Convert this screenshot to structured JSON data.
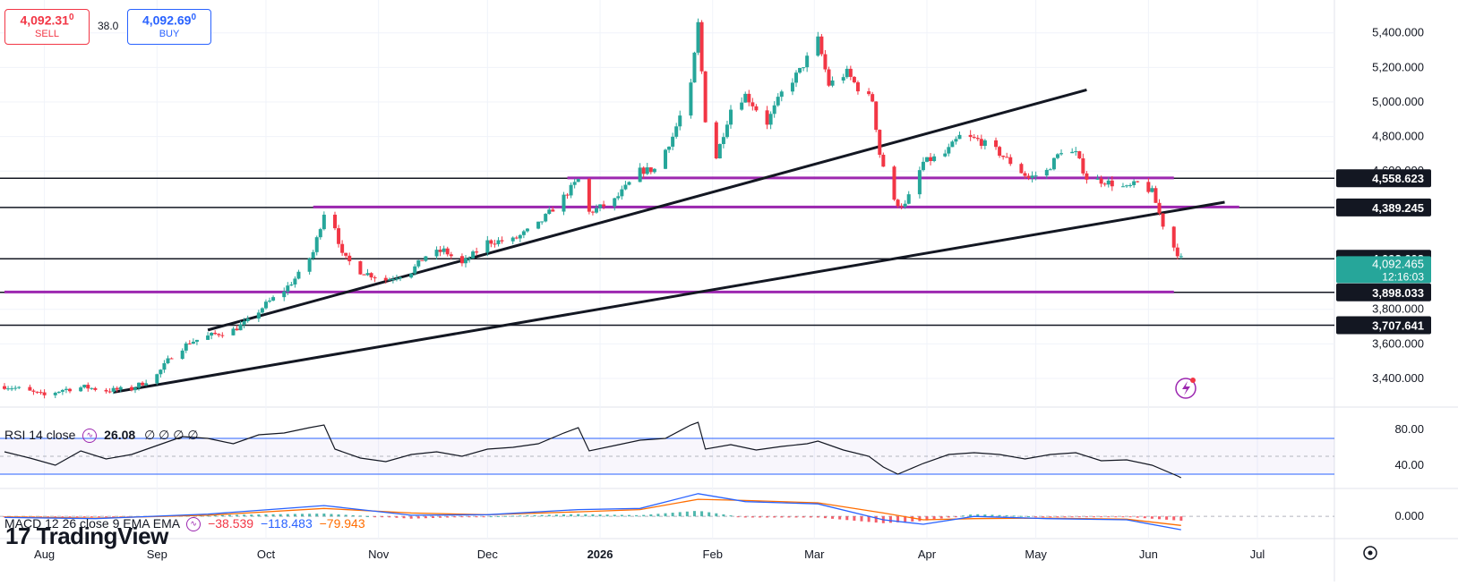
{
  "trade_panel": {
    "sell_price": "4,092.31",
    "sell_price_small": "0",
    "sell_label": "SELL",
    "spread": "38.0",
    "buy_price": "4,092.69",
    "buy_price_small": "0",
    "buy_label": "BUY"
  },
  "rsi_label": {
    "text": "RSI 14 close",
    "value": "26.08",
    "extra": "∅ ∅ ∅ ∅"
  },
  "macd_label": {
    "text": "MACD 12 26 close 9 EMA EMA",
    "v1": "−38.539",
    "v2": "−118.483",
    "v3": "−79.943"
  },
  "brand": "TradingView",
  "colors": {
    "up": "#26a69a",
    "down": "#f23645",
    "purple": "#9c27b0",
    "rsi_band": "#2962ff",
    "macd_line": "#2962ff",
    "signal_line": "#ff6d00"
  },
  "chart_data": {
    "type": "candlestick",
    "x_labels": [
      "Aug",
      "Sep",
      "Oct",
      "Nov",
      "Dec",
      "2026",
      "Feb",
      "Mar",
      "Apr",
      "May",
      "Jun",
      "Jul"
    ],
    "y_ticks": [
      "5,400.000",
      "5,200.000",
      "5,000.000",
      "4,800.000",
      "4,600.000",
      "3,800.000",
      "3,600.000",
      "3,400.000"
    ],
    "ylim": [
      3260,
      5590
    ],
    "price_levels": [
      {
        "price": 4558.623,
        "label": "4,558.623"
      },
      {
        "price": 4389.245,
        "label": "4,389.245"
      },
      {
        "price": 4092.608,
        "label": "4,092.608"
      },
      {
        "price": 3898.033,
        "label": "3,898.033"
      },
      {
        "price": 3707.641,
        "label": "3,707.641"
      }
    ],
    "current_price": {
      "label": "4,092.465",
      "countdown": "12:16:03"
    },
    "price_path": [
      {
        "d": "2025-07-21",
        "p": 3355
      },
      {
        "d": "2025-07-25",
        "p": 3340
      },
      {
        "d": "2025-08-01",
        "p": 3300
      },
      {
        "d": "2025-08-06",
        "p": 3335
      },
      {
        "d": "2025-08-12",
        "p": 3350
      },
      {
        "d": "2025-08-18",
        "p": 3330
      },
      {
        "d": "2025-08-25",
        "p": 3340
      },
      {
        "d": "2025-09-01",
        "p": 3420
      },
      {
        "d": "2025-09-05",
        "p": 3530
      },
      {
        "d": "2025-09-10",
        "p": 3610
      },
      {
        "d": "2025-09-16",
        "p": 3650
      },
      {
        "d": "2025-09-22",
        "p": 3680
      },
      {
        "d": "2025-09-26",
        "p": 3730
      },
      {
        "d": "2025-10-01",
        "p": 3830
      },
      {
        "d": "2025-10-06",
        "p": 3910
      },
      {
        "d": "2025-10-10",
        "p": 4000
      },
      {
        "d": "2025-10-14",
        "p": 4130
      },
      {
        "d": "2025-10-17",
        "p": 4360
      },
      {
        "d": "2025-10-20",
        "p": 4280
      },
      {
        "d": "2025-10-22",
        "p": 4110
      },
      {
        "d": "2025-10-27",
        "p": 4020
      },
      {
        "d": "2025-11-03",
        "p": 3970
      },
      {
        "d": "2025-11-10",
        "p": 4020
      },
      {
        "d": "2025-11-14",
        "p": 4110
      },
      {
        "d": "2025-11-19",
        "p": 4140
      },
      {
        "d": "2025-11-24",
        "p": 4060
      },
      {
        "d": "2025-12-01",
        "p": 4190
      },
      {
        "d": "2025-12-08",
        "p": 4200
      },
      {
        "d": "2025-12-15",
        "p": 4290
      },
      {
        "d": "2025-12-22",
        "p": 4450
      },
      {
        "d": "2025-12-26",
        "p": 4550
      },
      {
        "d": "2025-12-29",
        "p": 4360
      },
      {
        "d": "2026-01-05",
        "p": 4430
      },
      {
        "d": "2026-01-12",
        "p": 4600
      },
      {
        "d": "2026-01-16",
        "p": 4610
      },
      {
        "d": "2026-01-21",
        "p": 4800
      },
      {
        "d": "2026-01-26",
        "p": 5090
      },
      {
        "d": "2026-01-28",
        "p": 5450
      },
      {
        "d": "2026-01-30",
        "p": 4900
      },
      {
        "d": "2026-02-02",
        "p": 4680
      },
      {
        "d": "2026-02-06",
        "p": 4960
      },
      {
        "d": "2026-02-10",
        "p": 5040
      },
      {
        "d": "2026-02-16",
        "p": 4880
      },
      {
        "d": "2026-02-20",
        "p": 5050
      },
      {
        "d": "2026-02-25",
        "p": 5180
      },
      {
        "d": "2026-03-02",
        "p": 5360
      },
      {
        "d": "2026-03-05",
        "p": 5100
      },
      {
        "d": "2026-03-10",
        "p": 5170
      },
      {
        "d": "2026-03-13",
        "p": 5080
      },
      {
        "d": "2026-03-17",
        "p": 5010
      },
      {
        "d": "2026-03-19",
        "p": 4700
      },
      {
        "d": "2026-03-23",
        "p": 4420
      },
      {
        "d": "2026-03-26",
        "p": 4400
      },
      {
        "d": "2026-03-31",
        "p": 4650
      },
      {
        "d": "2026-04-06",
        "p": 4700
      },
      {
        "d": "2026-04-10",
        "p": 4800
      },
      {
        "d": "2026-04-15",
        "p": 4780
      },
      {
        "d": "2026-04-20",
        "p": 4720
      },
      {
        "d": "2026-04-24",
        "p": 4650
      },
      {
        "d": "2026-04-29",
        "p": 4560
      },
      {
        "d": "2026-05-04",
        "p": 4600
      },
      {
        "d": "2026-05-08",
        "p": 4720
      },
      {
        "d": "2026-05-12",
        "p": 4700
      },
      {
        "d": "2026-05-15",
        "p": 4560
      },
      {
        "d": "2026-05-20",
        "p": 4540
      },
      {
        "d": "2026-05-26",
        "p": 4500
      },
      {
        "d": "2026-05-29",
        "p": 4530
      },
      {
        "d": "2026-06-02",
        "p": 4480
      },
      {
        "d": "2026-06-05",
        "p": 4290
      },
      {
        "d": "2026-06-08",
        "p": 4160
      },
      {
        "d": "2026-06-10",
        "p": 4092
      }
    ],
    "trendlines": [
      {
        "from": {
          "d": "2025-08-20",
          "p": 3320
        },
        "to": {
          "d": "2026-06-22",
          "p": 4420
        }
      },
      {
        "from": {
          "d": "2025-09-15",
          "p": 3680
        },
        "to": {
          "d": "2026-05-15",
          "p": 5070
        }
      }
    ],
    "purple_lines": [
      {
        "from": "2025-10-14",
        "to": "2026-06-26",
        "p": 4392
      },
      {
        "from": "2025-12-23",
        "to": "2026-06-08",
        "p": 4560
      },
      {
        "from": "2025-07-21",
        "to": "2026-06-08",
        "p": 3900
      }
    ],
    "rsi": {
      "y_ticks": [
        "80.00",
        "40.00"
      ],
      "ylim": [
        15,
        100
      ],
      "bands": [
        70,
        50,
        30
      ],
      "path": [
        {
          "d": "2025-07-21",
          "v": 55
        },
        {
          "d": "2025-07-28",
          "v": 48
        },
        {
          "d": "2025-08-04",
          "v": 40
        },
        {
          "d": "2025-08-11",
          "v": 56
        },
        {
          "d": "2025-08-18",
          "v": 47
        },
        {
          "d": "2025-08-25",
          "v": 52
        },
        {
          "d": "2025-09-01",
          "v": 62
        },
        {
          "d": "2025-09-08",
          "v": 72
        },
        {
          "d": "2025-09-15",
          "v": 70
        },
        {
          "d": "2025-09-22",
          "v": 64
        },
        {
          "d": "2025-09-29",
          "v": 74
        },
        {
          "d": "2025-10-06",
          "v": 76
        },
        {
          "d": "2025-10-13",
          "v": 82
        },
        {
          "d": "2025-10-17",
          "v": 85
        },
        {
          "d": "2025-10-20",
          "v": 58
        },
        {
          "d": "2025-10-27",
          "v": 48
        },
        {
          "d": "2025-11-03",
          "v": 44
        },
        {
          "d": "2025-11-10",
          "v": 52
        },
        {
          "d": "2025-11-17",
          "v": 55
        },
        {
          "d": "2025-11-24",
          "v": 50
        },
        {
          "d": "2025-12-01",
          "v": 58
        },
        {
          "d": "2025-12-08",
          "v": 60
        },
        {
          "d": "2025-12-15",
          "v": 64
        },
        {
          "d": "2025-12-22",
          "v": 76
        },
        {
          "d": "2025-12-26",
          "v": 82
        },
        {
          "d": "2025-12-29",
          "v": 56
        },
        {
          "d": "2026-01-05",
          "v": 62
        },
        {
          "d": "2026-01-12",
          "v": 68
        },
        {
          "d": "2026-01-19",
          "v": 70
        },
        {
          "d": "2026-01-26",
          "v": 85
        },
        {
          "d": "2026-01-28",
          "v": 88
        },
        {
          "d": "2026-01-30",
          "v": 58
        },
        {
          "d": "2026-02-06",
          "v": 63
        },
        {
          "d": "2026-02-13",
          "v": 57
        },
        {
          "d": "2026-02-20",
          "v": 61
        },
        {
          "d": "2026-02-27",
          "v": 64
        },
        {
          "d": "2026-03-02",
          "v": 67
        },
        {
          "d": "2026-03-09",
          "v": 57
        },
        {
          "d": "2026-03-16",
          "v": 50
        },
        {
          "d": "2026-03-20",
          "v": 38
        },
        {
          "d": "2026-03-24",
          "v": 30
        },
        {
          "d": "2026-03-31",
          "v": 42
        },
        {
          "d": "2026-04-07",
          "v": 52
        },
        {
          "d": "2026-04-14",
          "v": 54
        },
        {
          "d": "2026-04-21",
          "v": 52
        },
        {
          "d": "2026-04-28",
          "v": 47
        },
        {
          "d": "2026-05-05",
          "v": 52
        },
        {
          "d": "2026-05-12",
          "v": 54
        },
        {
          "d": "2026-05-19",
          "v": 45
        },
        {
          "d": "2026-05-26",
          "v": 46
        },
        {
          "d": "2026-06-02",
          "v": 40
        },
        {
          "d": "2026-06-09",
          "v": 28
        },
        {
          "d": "2026-06-10",
          "v": 26
        }
      ]
    },
    "macd": {
      "y_ticks": [
        "0.000"
      ],
      "ylim": [
        -180,
        230
      ],
      "macd_line": [
        {
          "d": "2025-07-21",
          "v": -10
        },
        {
          "d": "2025-08-15",
          "v": -20
        },
        {
          "d": "2025-09-15",
          "v": 20
        },
        {
          "d": "2025-10-17",
          "v": 95
        },
        {
          "d": "2025-11-10",
          "v": 10
        },
        {
          "d": "2025-12-01",
          "v": 15
        },
        {
          "d": "2025-12-26",
          "v": 60
        },
        {
          "d": "2026-01-12",
          "v": 70
        },
        {
          "d": "2026-01-28",
          "v": 200
        },
        {
          "d": "2026-02-10",
          "v": 130
        },
        {
          "d": "2026-03-02",
          "v": 110
        },
        {
          "d": "2026-03-20",
          "v": -30
        },
        {
          "d": "2026-03-31",
          "v": -70
        },
        {
          "d": "2026-04-14",
          "v": 0
        },
        {
          "d": "2026-05-04",
          "v": -20
        },
        {
          "d": "2026-05-26",
          "v": -30
        },
        {
          "d": "2026-06-10",
          "v": -118
        }
      ],
      "signal_line": [
        {
          "d": "2025-07-21",
          "v": -5
        },
        {
          "d": "2025-08-15",
          "v": -15
        },
        {
          "d": "2025-09-15",
          "v": 10
        },
        {
          "d": "2025-10-17",
          "v": 70
        },
        {
          "d": "2025-11-10",
          "v": 30
        },
        {
          "d": "2025-12-01",
          "v": 15
        },
        {
          "d": "2025-12-26",
          "v": 40
        },
        {
          "d": "2026-01-12",
          "v": 60
        },
        {
          "d": "2026-01-28",
          "v": 150
        },
        {
          "d": "2026-02-10",
          "v": 140
        },
        {
          "d": "2026-03-02",
          "v": 120
        },
        {
          "d": "2026-03-20",
          "v": 30
        },
        {
          "d": "2026-03-31",
          "v": -30
        },
        {
          "d": "2026-04-14",
          "v": -20
        },
        {
          "d": "2026-05-04",
          "v": -15
        },
        {
          "d": "2026-05-26",
          "v": -25
        },
        {
          "d": "2026-06-10",
          "v": -80
        }
      ]
    }
  }
}
